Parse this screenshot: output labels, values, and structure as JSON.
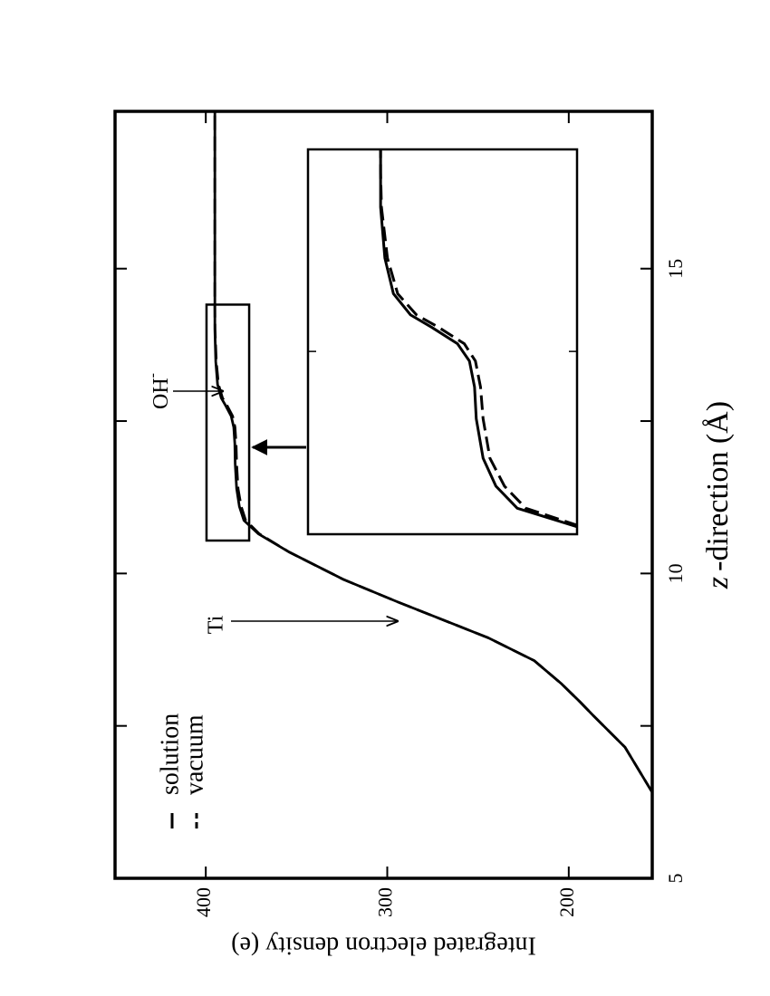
{
  "chart_data": {
    "type": "line",
    "x_label_var": "z",
    "x_label": "-direction (Å)",
    "y_label": "Integrated electron density (e)",
    "x": [
      6.41,
      7.15,
      7.67,
      7.9,
      8.19,
      8.57,
      8.94,
      9.53,
      9.9,
      10.35,
      10.65,
      10.87,
      11.1,
      11.39,
      11.8,
      12.13,
      12.4,
      12.58,
      12.75,
      12.88,
      13.1,
      13.47,
      14.0,
      14.36,
      15.7,
      17.58
    ],
    "series": [
      {
        "name": "solution",
        "color": "#000000",
        "dash": false,
        "values": [
          154,
          169,
          186.5,
          194,
          204,
          219,
          244,
          294,
          324,
          354,
          371,
          379,
          381.5,
          383,
          383.8,
          384,
          384.6,
          386,
          389,
          391.5,
          393.5,
          394.5,
          395,
          395,
          395,
          395
        ]
      },
      {
        "name": "vacuum",
        "color": "#000000",
        "dash": true,
        "values": [
          154,
          169,
          186.5,
          194,
          204,
          219,
          244,
          294,
          324,
          354,
          370.5,
          378,
          380.5,
          382.2,
          383,
          383.3,
          383.9,
          385.2,
          388.2,
          390.8,
          393,
          394.2,
          394.9,
          395,
          395,
          395
        ]
      }
    ],
    "xlim": [
      5,
      17.58
    ],
    "ylim": [
      154,
      450
    ],
    "xticks": [
      5,
      10,
      15
    ],
    "x_minor_ticks": [
      7.5,
      12.5
    ],
    "yticks": [
      200,
      300,
      400
    ],
    "annotations": {
      "ti": "Ti",
      "oh": "OH",
      "oh_superscript": "-"
    },
    "inset": {
      "xlim": [
        10.6,
        14.6
      ],
      "ylim": [
        372,
        403.5
      ],
      "xticks": [
        12.5
      ],
      "zoom_box": {
        "xlim": [
          10.54,
          14.41
        ],
        "ylim": [
          376.1,
          399.6
        ]
      }
    }
  }
}
